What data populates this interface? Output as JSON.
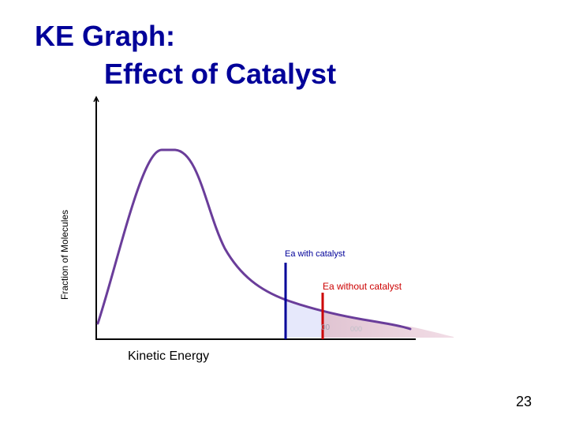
{
  "slide": {
    "title_line1": "KE Graph:",
    "title_line2": "Effect of Catalyst",
    "slide_number": "23"
  },
  "diagram": {
    "y_axis_label": "Fraction of Molecules",
    "x_axis_label": "Kinetic Energy",
    "ea_with_catalyst_label": "Ea with catalyst",
    "ea_without_catalyst_label": "Ea without catalyst",
    "marker_text_1": "00",
    "marker_text_2": "000",
    "colors": {
      "title": "#000099",
      "curve": "#6a3d9a",
      "ea_with_catalyst": "#000099",
      "ea_without_catalyst": "#cc0000",
      "shade_with_catalyst": "#e4e6fa",
      "shade_without_catalyst": "#ecc8d6"
    }
  }
}
